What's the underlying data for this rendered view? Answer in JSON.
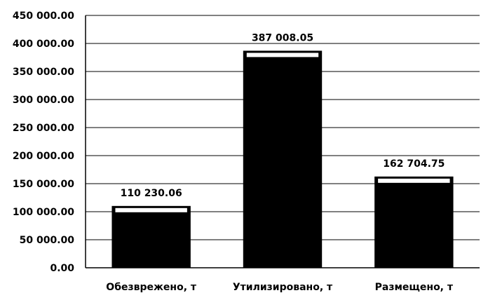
{
  "chart_data": {
    "type": "bar",
    "categories": [
      "Обезврежено, т",
      "Утилизировано, т",
      "Размещено, т"
    ],
    "values": [
      110230.06,
      387008.05,
      162704.75
    ],
    "data_labels": [
      "110 230.06",
      "387 008.05",
      "162 704.75"
    ],
    "ylim": [
      0,
      450000
    ],
    "yticks": [
      0,
      50000,
      100000,
      150000,
      200000,
      250000,
      300000,
      350000,
      400000,
      450000
    ],
    "ytick_labels": [
      "0.00",
      "50 000.00",
      "100 000.00",
      "150 000.00",
      "200 000.00",
      "250 000.00",
      "300 000.00",
      "350 000.00",
      "400 000.00",
      "450 000.00"
    ],
    "grid": true,
    "legend": "none",
    "bar_color": "#000000",
    "title": "",
    "xlabel": "",
    "ylabel": ""
  }
}
